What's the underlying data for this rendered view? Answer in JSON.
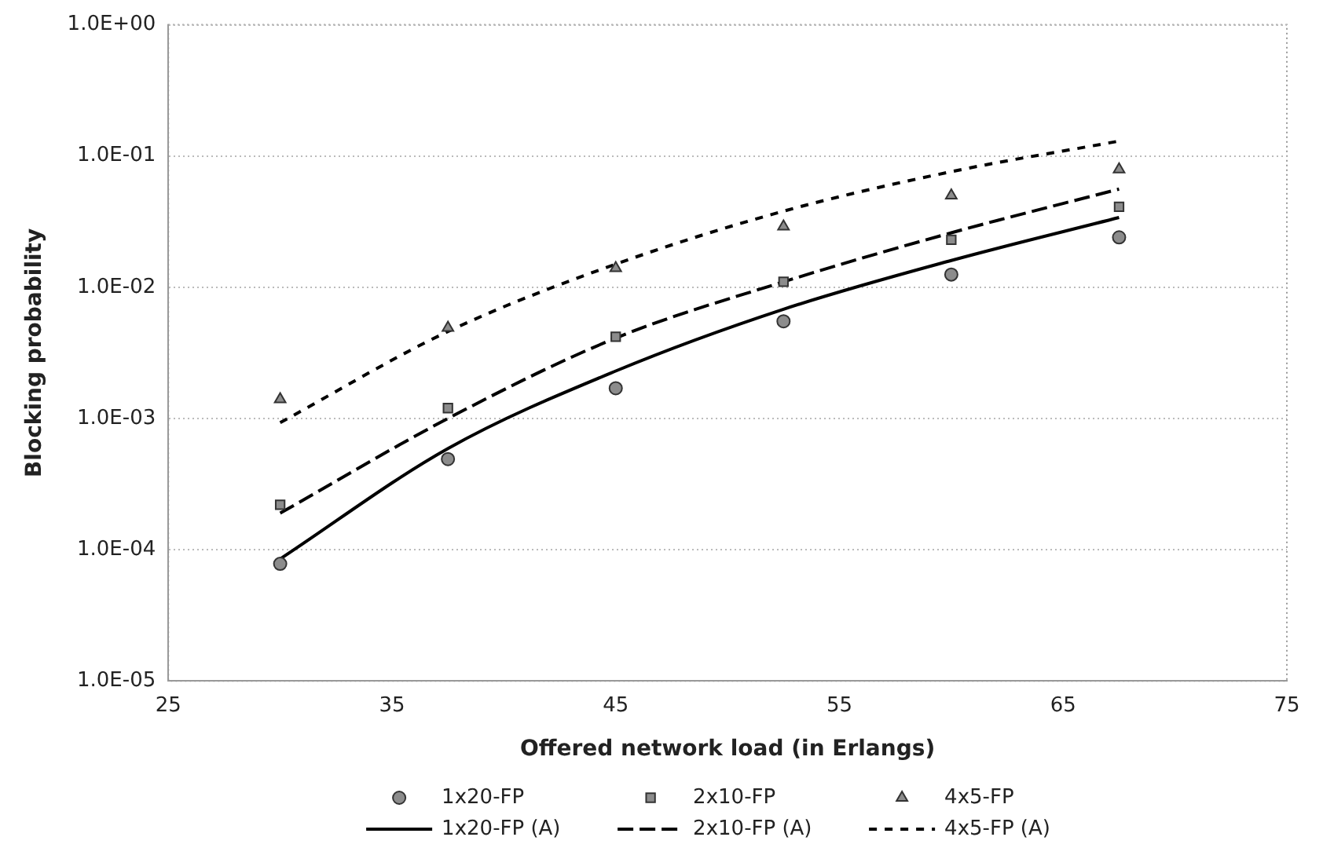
{
  "chart_data": {
    "type": "scatter",
    "xlabel": "Offered network load (in Erlangs)",
    "ylabel": "Blocking probability",
    "xlim": [
      25,
      75
    ],
    "xticks": [
      25,
      35,
      45,
      55,
      65,
      75
    ],
    "ylim": [
      1e-05,
      1
    ],
    "yticks": [
      {
        "value": 1,
        "label": "1.0E+00"
      },
      {
        "value": 0.1,
        "label": "1.0E-01"
      },
      {
        "value": 0.01,
        "label": "1.0E-02"
      },
      {
        "value": 0.001,
        "label": "1.0E-03"
      },
      {
        "value": 0.0001,
        "label": "1.0E-04"
      },
      {
        "value": 1e-05,
        "label": "1.0E-05"
      }
    ],
    "log": "y",
    "grid": "y",
    "legend": "bottom",
    "x": [
      30,
      37.5,
      45,
      52.5,
      60,
      67.5
    ],
    "series": [
      {
        "name": "1x20-FP",
        "marker": "circle",
        "color": "#8c8c8c",
        "values": [
          7.8e-05,
          0.00049,
          0.0017,
          0.0055,
          0.0125,
          0.024
        ]
      },
      {
        "name": "2x10-FP",
        "marker": "square",
        "color": "#8c8c8c",
        "values": [
          0.00022,
          0.0012,
          0.0042,
          0.011,
          0.023,
          0.041
        ]
      },
      {
        "name": "4x5-FP",
        "marker": "triangle",
        "color": "#8c8c8c",
        "values": [
          0.0014,
          0.0049,
          0.014,
          0.029,
          0.05,
          0.079
        ]
      },
      {
        "name": "1x20-FP (A)",
        "type": "line",
        "line_style": "solid",
        "color": "#000000",
        "values": [
          8.5e-05,
          0.00059,
          0.0023,
          0.0068,
          0.016,
          0.034
        ]
      },
      {
        "name": "2x10-FP (A)",
        "type": "line",
        "line_style": "dashed",
        "color": "#000000",
        "values": [
          0.00019,
          0.001,
          0.0041,
          0.011,
          0.026,
          0.056
        ]
      },
      {
        "name": "4x5-FP (A)",
        "type": "line",
        "line_style": "dotted",
        "color": "#000000",
        "values": [
          0.00093,
          0.0046,
          0.015,
          0.038,
          0.076,
          0.13
        ]
      }
    ]
  }
}
